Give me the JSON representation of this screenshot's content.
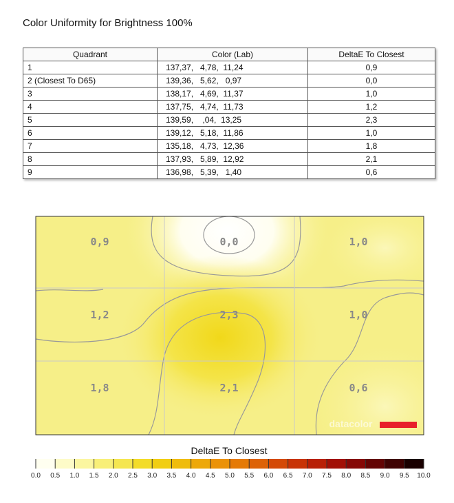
{
  "header": {
    "title": "Color Uniformity for Brightness 100%"
  },
  "table": {
    "columns": [
      "Quadrant",
      "Color (Lab)",
      "DeltaE To Closest"
    ],
    "rows": [
      [
        "1",
        "137,37,   4,78,  11,24",
        "0,9"
      ],
      [
        "2 (Closest To D65)",
        "139,36,   5,62,   0,97",
        "0,0"
      ],
      [
        "3",
        "138,17,   4,69,  11,37",
        "1,0"
      ],
      [
        "4",
        "137,75,   4,74,  11,73",
        "1,2"
      ],
      [
        "5",
        "139,59,    ,04,  13,25",
        "2,3"
      ],
      [
        "6",
        "139,12,   5,18,  11,86",
        "1,0"
      ],
      [
        "7",
        "135,18,   4,73,  12,36",
        "1,8"
      ],
      [
        "8",
        "137,93,   5,89,  12,92",
        "2,1"
      ],
      [
        "9",
        "136,98,   5,39,   1,40",
        "0,6"
      ]
    ]
  },
  "heatmap": {
    "watermark": "datacolor"
  },
  "colorbar": {
    "title": "DeltaE To Closest",
    "ticks": [
      "0.0",
      "0.5",
      "1.0",
      "1.5",
      "2.0",
      "2.5",
      "3.0",
      "3.5",
      "4.0",
      "4.5",
      "5.0",
      "5.5",
      "6.0",
      "6.5",
      "7.0",
      "7.5",
      "8.0",
      "8.5",
      "9.0",
      "9.5",
      "10.0"
    ]
  }
}
